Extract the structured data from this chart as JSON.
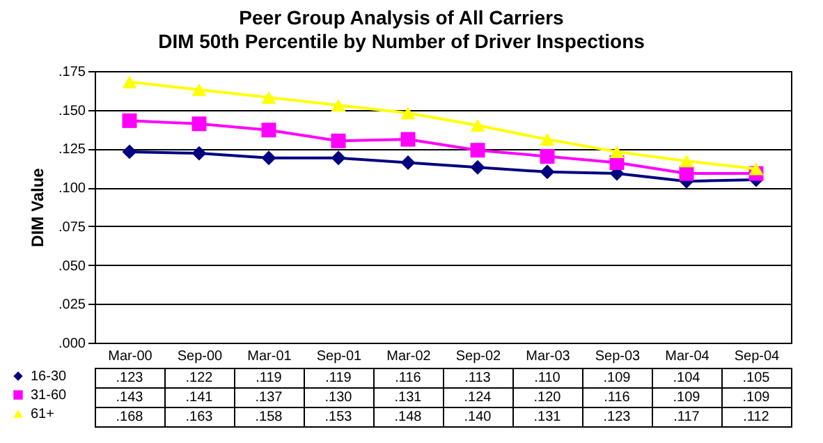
{
  "chart_data": {
    "type": "line",
    "title": [
      "Peer Group Analysis of All Carriers",
      "DIM 50th Percentile by Number of Driver Inspections"
    ],
    "ylabel": "DIM Value",
    "categories": [
      "Mar-00",
      "Sep-00",
      "Mar-01",
      "Sep-01",
      "Mar-02",
      "Sep-02",
      "Mar-03",
      "Sep-03",
      "Mar-04",
      "Sep-04"
    ],
    "series": [
      {
        "name": "16-30",
        "color": "#000080",
        "marker": "diamond",
        "values": [
          0.123,
          0.122,
          0.119,
          0.119,
          0.116,
          0.113,
          0.11,
          0.109,
          0.104,
          0.105
        ],
        "value_labels": [
          ".123",
          ".122",
          ".119",
          ".119",
          ".116",
          ".113",
          ".110",
          ".109",
          ".104",
          ".105"
        ]
      },
      {
        "name": "31-60",
        "color": "#ff00ff",
        "marker": "square",
        "values": [
          0.143,
          0.141,
          0.137,
          0.13,
          0.131,
          0.124,
          0.12,
          0.116,
          0.109,
          0.109
        ],
        "value_labels": [
          ".143",
          ".141",
          ".137",
          ".130",
          ".131",
          ".124",
          ".120",
          ".116",
          ".109",
          ".109"
        ]
      },
      {
        "name": "61+",
        "color": "#ffff00",
        "marker": "triangle",
        "values": [
          0.168,
          0.163,
          0.158,
          0.153,
          0.148,
          0.14,
          0.131,
          0.123,
          0.117,
          0.112
        ],
        "value_labels": [
          ".168",
          ".163",
          ".158",
          ".153",
          ".148",
          ".140",
          ".131",
          ".123",
          ".117",
          ".112"
        ]
      }
    ],
    "ylim": [
      0,
      0.175
    ],
    "yticks": [
      {
        "value": 0,
        "label": ".000"
      },
      {
        "value": 0.025,
        "label": ".025"
      },
      {
        "value": 0.05,
        "label": ".050"
      },
      {
        "value": 0.075,
        "label": ".075"
      },
      {
        "value": 0.1,
        "label": ".100"
      },
      {
        "value": 0.125,
        "label": ".125"
      },
      {
        "value": 0.15,
        "label": ".150"
      },
      {
        "value": 0.175,
        "label": ".175"
      }
    ],
    "grid": "y",
    "legend": "bottom left",
    "line_style": "solid"
  }
}
